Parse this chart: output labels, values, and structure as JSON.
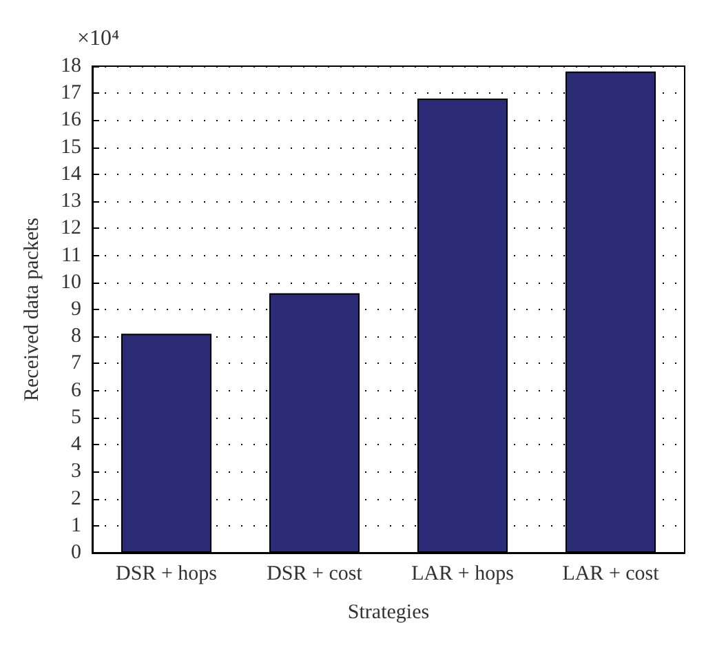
{
  "chart_data": {
    "type": "bar",
    "categories": [
      "DSR + hops",
      "DSR + cost",
      "LAR + hops",
      "LAR + cost"
    ],
    "values": [
      8.1,
      9.6,
      16.8,
      17.8
    ],
    "color": "#2b2b76",
    "ylim": [
      0,
      18
    ],
    "yticks": [
      0,
      1,
      2,
      3,
      4,
      5,
      6,
      7,
      8,
      9,
      10,
      11,
      12,
      13,
      14,
      15,
      16,
      17,
      18
    ],
    "xlabel": "Strategies",
    "ylabel": "Received data packets",
    "annotations": [
      "×10⁴"
    ],
    "grid": "y"
  }
}
